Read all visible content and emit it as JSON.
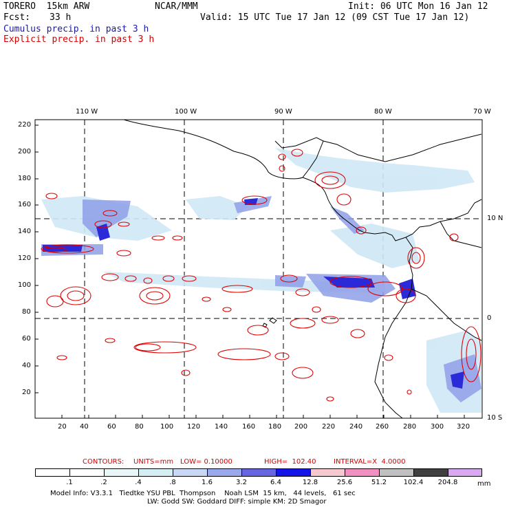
{
  "header": {
    "model": "TORERO  15km ARW",
    "org": "NCAR/MMM",
    "init": "Init: 06 UTC Mon 16 Jan 12",
    "fcst_label": "Fcst:",
    "fcst_value": "33 h",
    "valid": "Valid: 15 UTC Tue 17 Jan 12 (09 CST Tue 17 Jan 12)",
    "field1": "Cumulus precip. in past 3 h",
    "field2": "Explicit precip. in past 3 h"
  },
  "map": {
    "lon_labels": [
      "110 W",
      "100 W",
      "90 W",
      "80 W",
      "70 W"
    ],
    "lat_labels": [
      "10 N",
      "0",
      "10 S"
    ],
    "y_ticks": [
      "220",
      "200",
      "180",
      "160",
      "140",
      "120",
      "100",
      "80",
      "60",
      "40",
      "20"
    ],
    "x_ticks": [
      "20",
      "40",
      "60",
      "80",
      "100",
      "120",
      "140",
      "160",
      "180",
      "200",
      "220",
      "240",
      "260",
      "280",
      "300",
      "320"
    ],
    "colors": {
      "cumulus": "#3333cc",
      "explicit": "#e00000",
      "grid": "#000000"
    }
  },
  "contours_info": {
    "label": "CONTOURS:",
    "units": "UNITS=mm",
    "low": "LOW= 0.10000",
    "high": "HIGH=  102.40",
    "interval": "INTERVAL=X  4.0000"
  },
  "colorbar": {
    "labels": [
      ".1",
      ".2",
      ".4",
      ".8",
      "1.6",
      "3.2",
      "6.4",
      "12.8",
      "25.6",
      "51.2",
      "102.4",
      "204.8"
    ],
    "units": "mm",
    "colors": [
      "#ffffff",
      "#ffffff",
      "#e8f6f8",
      "#d4eef4",
      "#c8d8f4",
      "#9aa8ec",
      "#6666e0",
      "#1414e6",
      "#f6c8d0",
      "#f090c0",
      "#c0c0c0",
      "#404040",
      "#d8a8f0"
    ]
  },
  "footer": {
    "line1": "Model Info: V3.3.1   Tiedtke YSU PBL  Thompson    Noah LSM  15 km,   44 levels,   61 sec",
    "line2": "LW: Godd SW: Goddard DIFF: simple KM: 2D Smagor"
  }
}
